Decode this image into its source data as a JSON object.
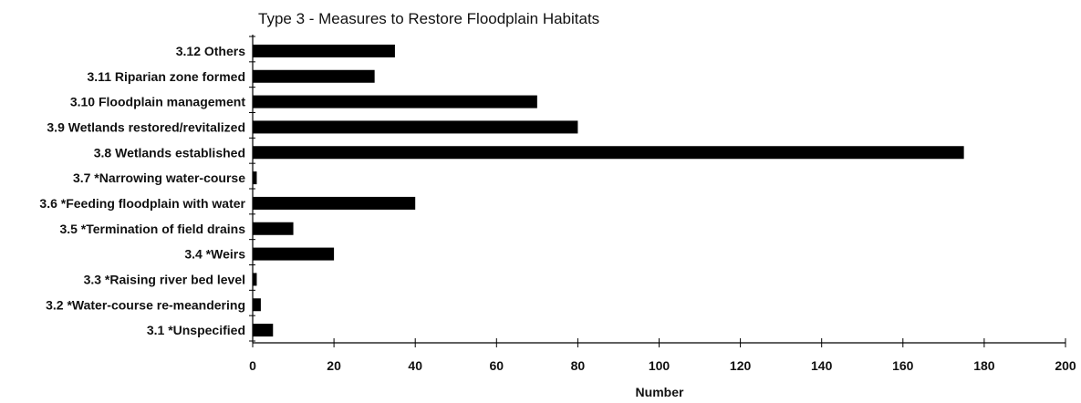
{
  "chart_data": {
    "type": "bar",
    "orientation": "horizontal",
    "title": "Type 3 - Measures to Restore Floodplain Habitats",
    "xlabel": "Number",
    "ylabel": "",
    "xlim": [
      0,
      200
    ],
    "xticks": [
      0,
      20,
      40,
      60,
      80,
      100,
      120,
      140,
      160,
      180,
      200
    ],
    "bar_color": "#000000",
    "grid": false,
    "categories": [
      "3.12 Others",
      "3.11 Riparian zone formed",
      "3.10 Floodplain management",
      "3.9 Wetlands restored/revitalized",
      "3.8 Wetlands established",
      "3.7 *Narrowing water-course",
      "3.6 *Feeding floodplain with water",
      "3.5 *Termination of field drains",
      "3.4 *Weirs",
      "3.3 *Raising river bed level",
      "3.2 *Water-course re-meandering",
      "3.1 *Unspecified"
    ],
    "values": [
      35,
      30,
      70,
      80,
      175,
      1,
      40,
      10,
      20,
      1,
      2,
      5
    ]
  }
}
